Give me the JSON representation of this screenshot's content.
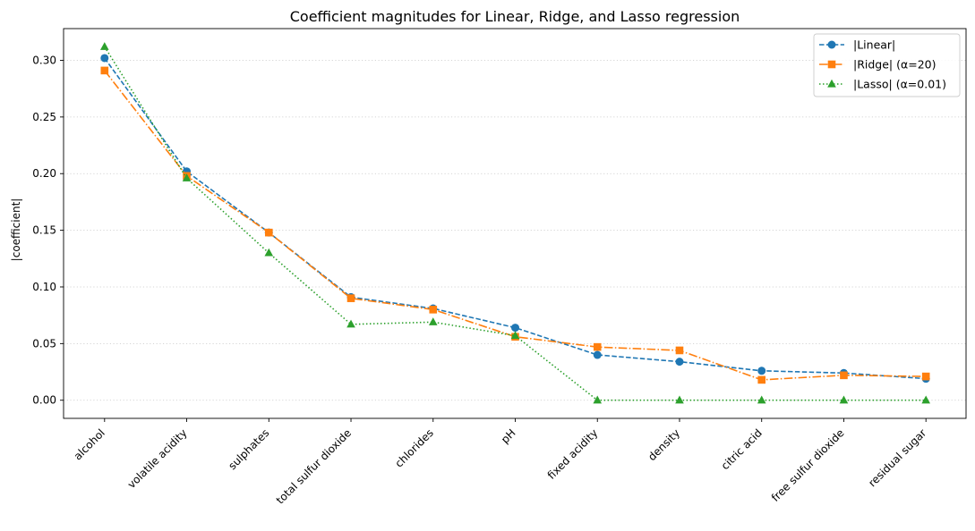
{
  "chart_data": {
    "type": "line",
    "title": "Coefficient magnitudes for Linear, Ridge, and Lasso regression",
    "xlabel": "",
    "ylabel": "|coefficient|",
    "categories": [
      "alcohol",
      "volatile acidity",
      "sulphates",
      "total sulfur dioxide",
      "chlorides",
      "pH",
      "fixed acidity",
      "density",
      "citric acid",
      "free sulfur dioxide",
      "residual sugar"
    ],
    "yticks": [
      "0.00",
      "0.05",
      "0.10",
      "0.15",
      "0.20",
      "0.25",
      "0.30"
    ],
    "ylim": [
      -0.016,
      0.328
    ],
    "grid": "horizontal dotted",
    "legend_position": "top-right",
    "series": [
      {
        "name": "|Linear|",
        "color": "#1f77b4",
        "linestyle": "dashed",
        "marker": "circle",
        "values": [
          0.302,
          0.202,
          0.148,
          0.091,
          0.081,
          0.064,
          0.04,
          0.034,
          0.026,
          0.024,
          0.019
        ]
      },
      {
        "name": "|Ridge| (α=20)",
        "color": "#ff7f0e",
        "linestyle": "dashdot",
        "marker": "square",
        "values": [
          0.291,
          0.198,
          0.148,
          0.09,
          0.08,
          0.056,
          0.047,
          0.044,
          0.018,
          0.022,
          0.021
        ]
      },
      {
        "name": "|Lasso| (α=0.01)",
        "color": "#2ca02c",
        "linestyle": "dotted",
        "marker": "triangle",
        "values": [
          0.312,
          0.196,
          0.13,
          0.067,
          0.069,
          0.057,
          0.0,
          0.0,
          0.0,
          0.0,
          0.0
        ]
      }
    ]
  }
}
